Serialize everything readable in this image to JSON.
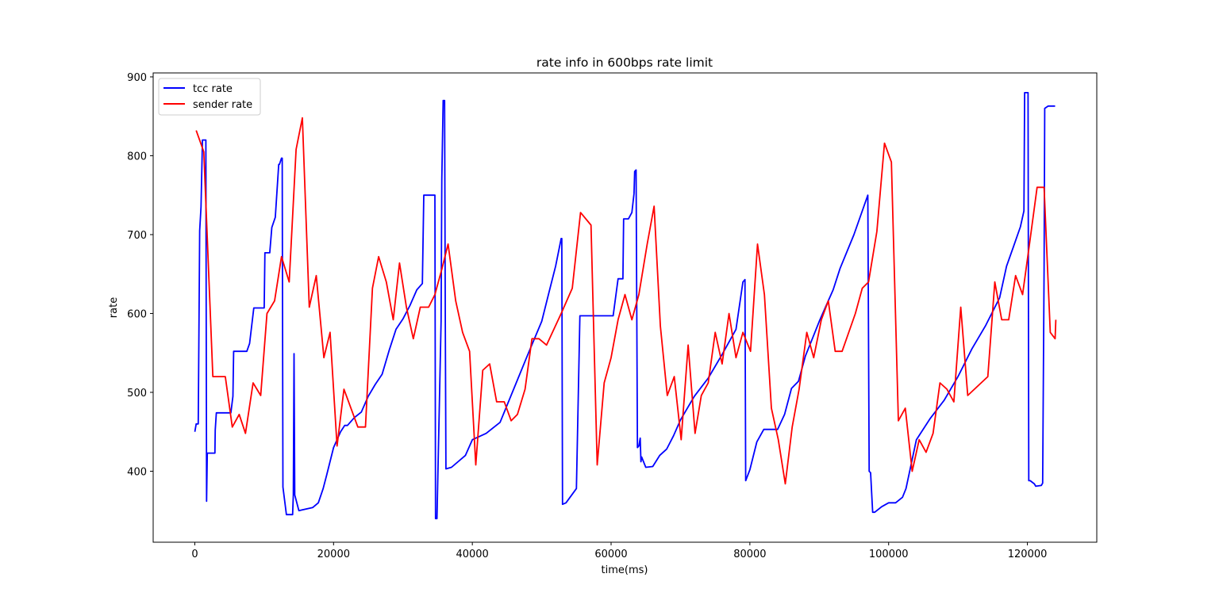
{
  "chart_data": {
    "type": "line",
    "title": "rate info in 600bps rate limit",
    "xlabel": "time(ms)",
    "ylabel": "rate",
    "xlim": [
      -6000,
      130000
    ],
    "ylim": [
      310,
      905
    ],
    "xticks": [
      0,
      20000,
      40000,
      60000,
      80000,
      100000,
      120000
    ],
    "yticks": [
      400,
      500,
      600,
      700,
      800,
      900
    ],
    "grid": false,
    "legend_position": "top-left",
    "series": [
      {
        "name": "tcc rate",
        "color": "#0000ff",
        "x": [
          0,
          200,
          500,
          700,
          900,
          1100,
          1600,
          1700,
          1800,
          2900,
          2950,
          3100,
          4000,
          5200,
          5500,
          5600,
          7500,
          7900,
          8500,
          10000,
          10100,
          10800,
          11100,
          11600,
          12100,
          12200,
          12500,
          12600,
          12700,
          13200,
          13900,
          14100,
          14200,
          14300,
          14400,
          15000,
          17000,
          17800,
          18500,
          19000,
          20000,
          21000,
          21600,
          22000,
          23000,
          24000,
          25000,
          26000,
          27000,
          28000,
          29000,
          30000,
          31000,
          32000,
          32800,
          33000,
          34000,
          34600,
          34700,
          34900,
          35500,
          35600,
          35800,
          36000,
          36100,
          36200,
          37000,
          39000,
          40000,
          42000,
          43000,
          44000,
          46000,
          48000,
          50000,
          51000,
          52000,
          52800,
          52900,
          53000,
          53500,
          55000,
          55500,
          57000,
          59000,
          60200,
          60300,
          61000,
          61700,
          61800,
          62500,
          63000,
          63300,
          63400,
          63600,
          63800,
          64000,
          64200,
          64300,
          64400,
          65000,
          66000,
          67000,
          68000,
          69000,
          70000,
          72000,
          74000,
          76000,
          78000,
          79000,
          79300,
          79400,
          80000,
          81000,
          82000,
          83000,
          84000,
          85000,
          86000,
          87000,
          88000,
          89000,
          90000,
          91000,
          92000,
          93000,
          95000,
          97000,
          97200,
          97400,
          97700,
          98000,
          99000,
          100000,
          101000,
          102000,
          102500,
          104000,
          106000,
          108000,
          110000,
          112000,
          114000,
          116000,
          117000,
          118000,
          119000,
          119500,
          119600,
          120100,
          120200,
          120400,
          121000,
          121200,
          122000,
          122200,
          122400,
          122500,
          123000,
          124000
        ],
        "y": [
          450,
          460,
          460,
          705,
          735,
          820,
          820,
          362,
          423,
          423,
          452,
          474,
          474,
          474,
          495,
          552,
          552,
          562,
          607,
          607,
          677,
          677,
          709,
          722,
          789,
          789,
          797,
          797,
          380,
          345,
          345,
          345,
          370,
          549,
          370,
          350,
          354,
          360,
          378,
          395,
          430,
          450,
          458,
          458,
          468,
          475,
          495,
          510,
          523,
          553,
          580,
          593,
          610,
          630,
          638,
          750,
          750,
          750,
          340,
          340,
          590,
          770,
          870,
          870,
          590,
          403,
          405,
          420,
          440,
          448,
          455,
          462,
          505,
          548,
          590,
          625,
          660,
          695,
          695,
          358,
          360,
          378,
          597,
          597,
          597,
          597,
          597,
          644,
          644,
          720,
          720,
          728,
          752,
          780,
          782,
          430,
          432,
          442,
          412,
          418,
          405,
          406,
          420,
          428,
          445,
          465,
          495,
          518,
          548,
          580,
          640,
          643,
          388,
          402,
          437,
          453,
          453,
          453,
          472,
          505,
          514,
          546,
          568,
          590,
          610,
          630,
          657,
          700,
          750,
          400,
          398,
          348,
          348,
          355,
          360,
          360,
          367,
          378,
          440,
          467,
          490,
          520,
          555,
          585,
          620,
          660,
          685,
          710,
          730,
          880,
          880,
          388,
          388,
          384,
          381,
          382,
          385,
          655,
          860,
          863,
          863
        ]
      },
      {
        "name": "sender rate",
        "color": "#ff0000",
        "x": [
          200,
          1300,
          2600,
          3500,
          4400,
          5400,
          6400,
          7300,
          8400,
          9500,
          10400,
          11500,
          12500,
          13600,
          14600,
          15500,
          16500,
          17500,
          18600,
          19500,
          20500,
          21500,
          22500,
          23500,
          24600,
          25600,
          26500,
          27600,
          28600,
          29500,
          30500,
          31500,
          32500,
          33700,
          34600,
          35600,
          36500,
          37600,
          38600,
          39600,
          40500,
          41500,
          42500,
          43500,
          44600,
          45600,
          46500,
          47600,
          48600,
          49600,
          50700,
          52800,
          54400,
          55600,
          57100,
          58000,
          59000,
          60000,
          61000,
          62000,
          63000,
          64000,
          65200,
          66200,
          67100,
          68100,
          69100,
          70100,
          71100,
          72100,
          73000,
          74000,
          75000,
          76000,
          77000,
          78000,
          79000,
          80100,
          81100,
          82100,
          83100,
          84100,
          85100,
          86100,
          87100,
          88200,
          89200,
          90300,
          91300,
          92300,
          93300,
          95200,
          96200,
          97100,
          98300,
          99400,
          100400,
          101400,
          102400,
          103400,
          104400,
          105400,
          106400,
          107400,
          108400,
          109400,
          110400,
          111400,
          114300,
          115300,
          116300,
          117300,
          118300,
          119300,
          120300,
          121400,
          122400,
          123300,
          124000,
          124100
        ],
        "y": [
          832,
          805,
          520,
          520,
          520,
          456,
          472,
          448,
          512,
          496,
          600,
          616,
          672,
          640,
          808,
          848,
          608,
          648,
          544,
          576,
          432,
          504,
          480,
          456,
          456,
          632,
          672,
          640,
          592,
          664,
          608,
          568,
          608,
          608,
          624,
          656,
          688,
          616,
          576,
          552,
          408,
          528,
          536,
          488,
          488,
          464,
          472,
          504,
          568,
          568,
          560,
          600,
          632,
          728,
          712,
          408,
          512,
          544,
          592,
          624,
          592,
          624,
          688,
          736,
          584,
          496,
          520,
          440,
          560,
          448,
          496,
          512,
          576,
          536,
          600,
          544,
          576,
          552,
          688,
          624,
          480,
          440,
          384,
          456,
          504,
          576,
          544,
          592,
          616,
          552,
          552,
          600,
          632,
          640,
          704,
          816,
          792,
          464,
          480,
          400,
          440,
          424,
          448,
          512,
          504,
          488,
          608,
          496,
          520,
          640,
          592,
          592,
          648,
          624,
          688,
          760,
          760,
          576,
          568,
          592
        ]
      }
    ]
  }
}
